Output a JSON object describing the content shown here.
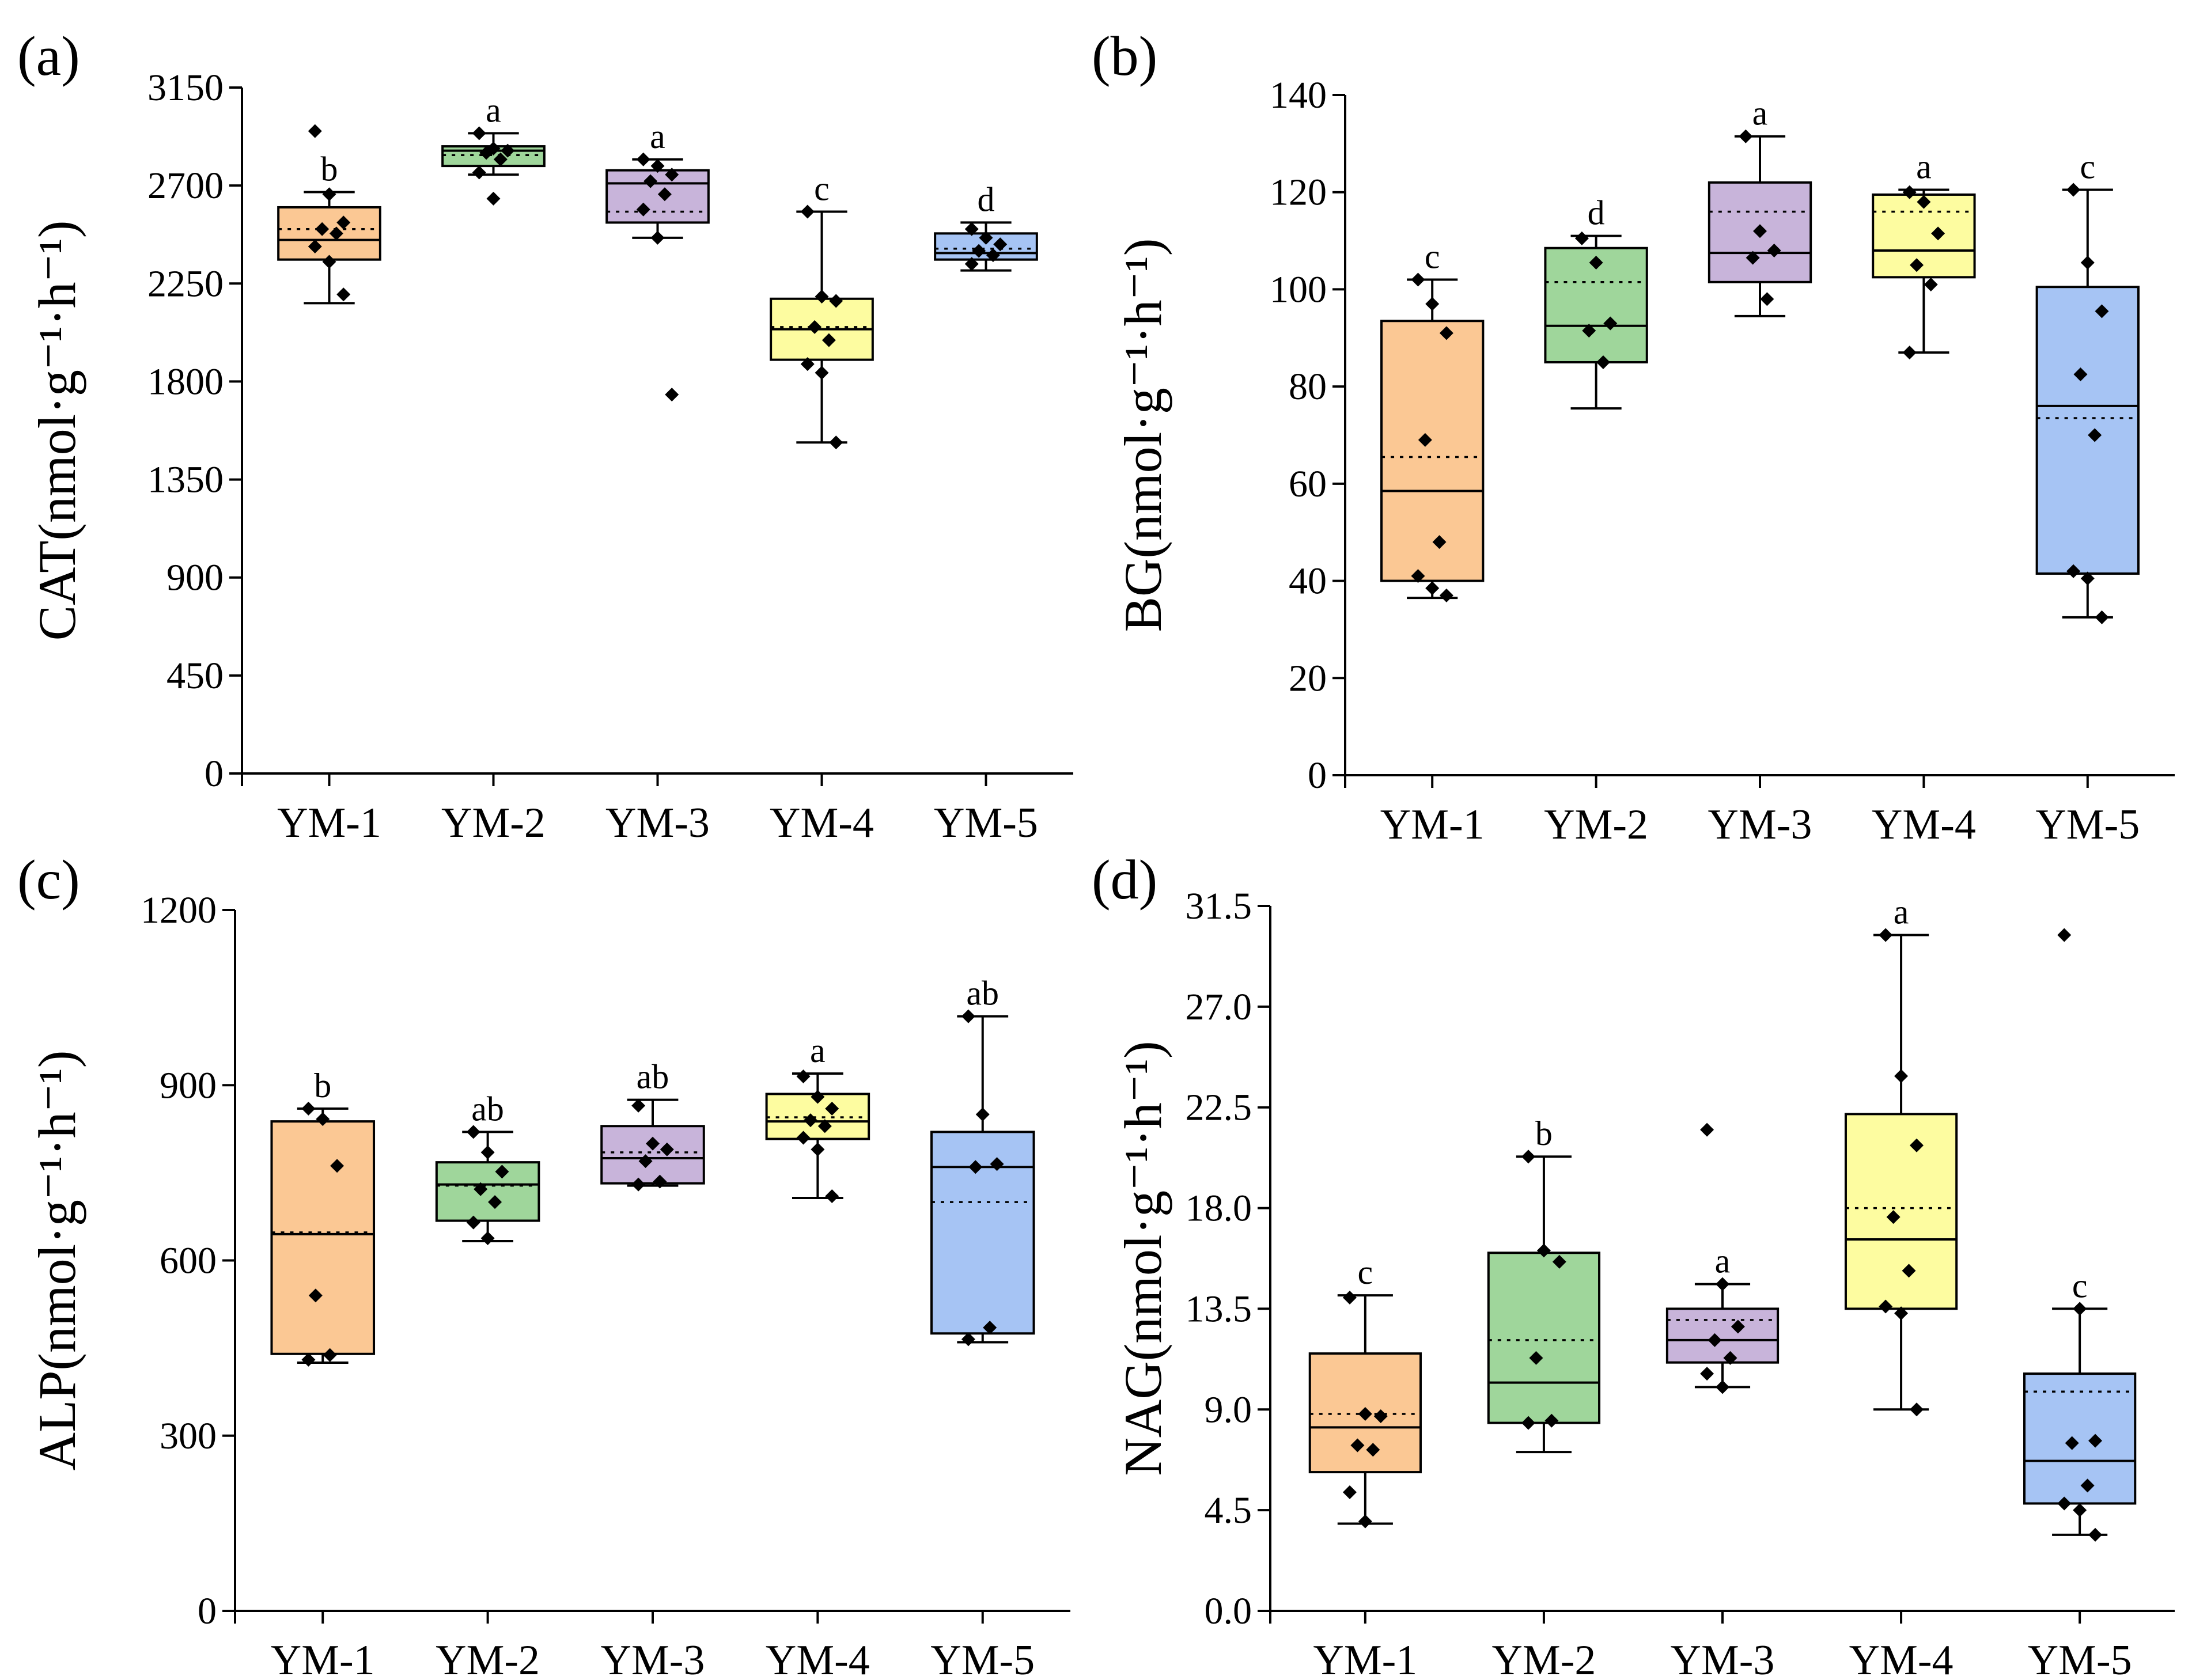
{
  "chart_data": [
    {
      "type": "box",
      "panel_label": "(a)",
      "ylabel": "CAT(nmol·g⁻¹·h⁻¹)",
      "ylim": [
        0,
        3150
      ],
      "yticks": [
        "0",
        "450",
        "900",
        "1350",
        "1800",
        "2250",
        "2700",
        "3150"
      ],
      "categories": [
        "YM-1",
        "YM-2",
        "YM-3",
        "YM-4",
        "YM-5"
      ],
      "colors": [
        "#fbc894",
        "#9fd69b",
        "#c8b4da",
        "#fdfca0",
        "#a6c4f4"
      ],
      "boxes": [
        {
          "min": 2160,
          "q1": 2360,
          "median": 2450,
          "q3": 2600,
          "max": 2670,
          "mean": 2500,
          "letter": "b",
          "points": [
            2950,
            2660,
            2530,
            2500,
            2480,
            2420,
            2350,
            2200
          ]
        },
        {
          "min": 2750,
          "q1": 2790,
          "median": 2860,
          "q3": 2880,
          "max": 2940,
          "mean": 2840,
          "letter": "a",
          "points": [
            2940,
            2870,
            2860,
            2850,
            2820,
            2760,
            2640
          ]
        },
        {
          "min": 2460,
          "q1": 2530,
          "median": 2710,
          "q3": 2770,
          "max": 2820,
          "mean": 2580,
          "letter": "a",
          "points": [
            2820,
            2790,
            2750,
            2720,
            2660,
            2590,
            2460,
            1740
          ]
        },
        {
          "min": 1520,
          "q1": 1900,
          "median": 2040,
          "q3": 2180,
          "max": 2580,
          "mean": 2050,
          "letter": "c",
          "points": [
            2580,
            2190,
            2170,
            2050,
            1990,
            1880,
            1840,
            1520
          ]
        },
        {
          "min": 2310,
          "q1": 2360,
          "median": 2390,
          "q3": 2480,
          "max": 2530,
          "mean": 2410,
          "letter": "d",
          "points": [
            2500,
            2460,
            2430,
            2400,
            2380,
            2340
          ]
        }
      ]
    },
    {
      "type": "box",
      "panel_label": "(b)",
      "ylabel": "BG(nmol·g⁻¹·h⁻¹)",
      "ylim": [
        0,
        140
      ],
      "yticks": [
        "0",
        "20",
        "40",
        "60",
        "80",
        "100",
        "120",
        "140"
      ],
      "categories": [
        "YM-1",
        "YM-2",
        "YM-3",
        "YM-4",
        "YM-5"
      ],
      "colors": [
        "#fbc894",
        "#9fd69b",
        "#c8b4da",
        "#fdfca0",
        "#a6c4f4"
      ],
      "boxes": [
        {
          "min": 36.5,
          "q1": 40,
          "median": 58.5,
          "q3": 93.5,
          "max": 102,
          "mean": 65.5,
          "letter": "c",
          "points": [
            102,
            97,
            91,
            69,
            48,
            41,
            38.5,
            37
          ]
        },
        {
          "min": 75.5,
          "q1": 85,
          "median": 92.5,
          "q3": 108.5,
          "max": 111,
          "mean": 101.5,
          "letter": "d",
          "points": [
            110.5,
            105.5,
            93,
            91.5,
            85
          ]
        },
        {
          "min": 94.5,
          "q1": 101.5,
          "median": 107.5,
          "q3": 122,
          "max": 131.5,
          "mean": 116,
          "letter": "a",
          "points": [
            131.5,
            112,
            108,
            106.5,
            98
          ]
        },
        {
          "min": 87,
          "q1": 102.5,
          "median": 108,
          "q3": 119.5,
          "max": 120.5,
          "mean": 116,
          "letter": "a",
          "points": [
            120,
            118,
            111.5,
            105,
            101,
            87
          ]
        },
        {
          "min": 32.5,
          "q1": 41.5,
          "median": 76,
          "q3": 100.5,
          "max": 120.5,
          "mean": 73.5,
          "letter": "c",
          "points": [
            120.5,
            105.5,
            95.5,
            82.5,
            70,
            42,
            40.5,
            32.5
          ]
        }
      ]
    },
    {
      "type": "box",
      "panel_label": "(c)",
      "ylabel": "ALP(nmol·g⁻¹·h⁻¹)",
      "ylim": [
        0,
        1200
      ],
      "yticks": [
        "0",
        "300",
        "600",
        "900",
        "1200"
      ],
      "categories": [
        "YM-1",
        "YM-2",
        "YM-3",
        "YM-4",
        "YM-5"
      ],
      "colors": [
        "#fbc894",
        "#9fd69b",
        "#c8b4da",
        "#fdfca0",
        "#a6c4f4"
      ],
      "boxes": [
        {
          "min": 425,
          "q1": 440,
          "median": 645,
          "q3": 838,
          "max": 860,
          "mean": 648,
          "letter": "b",
          "points": [
            860,
            842,
            762,
            540,
            438,
            430
          ]
        },
        {
          "min": 633,
          "q1": 668,
          "median": 730,
          "q3": 768,
          "max": 820,
          "mean": 728,
          "letter": "ab",
          "points": [
            820,
            785,
            752,
            722,
            700,
            665,
            638
          ]
        },
        {
          "min": 728,
          "q1": 732,
          "median": 775,
          "q3": 830,
          "max": 875,
          "mean": 785,
          "letter": "ab",
          "points": [
            865,
            800,
            790,
            770,
            735,
            730
          ]
        },
        {
          "min": 707,
          "q1": 808,
          "median": 838,
          "q3": 885,
          "max": 920,
          "mean": 845,
          "letter": "a",
          "points": [
            915,
            880,
            860,
            840,
            830,
            810,
            790,
            710
          ]
        },
        {
          "min": 460,
          "q1": 475,
          "median": 760,
          "q3": 820,
          "max": 1018,
          "mean": 700,
          "letter": "ab",
          "points": [
            1018,
            850,
            765,
            760,
            485,
            465
          ]
        }
      ]
    },
    {
      "type": "box",
      "panel_label": "(d)",
      "ylabel": "NAG(nmol·g⁻¹·h⁻¹)",
      "ylim": [
        0,
        31.5
      ],
      "yticks": [
        "0.0",
        "4.5",
        "9.0",
        "13.5",
        "18.0",
        "22.5",
        "27.0",
        "31.5"
      ],
      "categories": [
        "YM-1",
        "YM-2",
        "YM-3",
        "YM-4",
        "YM-5"
      ],
      "colors": [
        "#fbc894",
        "#9fd69b",
        "#c8b4da",
        "#fdfca0",
        "#a6c4f4"
      ],
      "boxes": [
        {
          "min": 3.9,
          "q1": 6.2,
          "median": 8.2,
          "q3": 11.5,
          "max": 14.1,
          "mean": 8.8,
          "letter": "c",
          "points": [
            14,
            8.8,
            8.7,
            7.4,
            7.2,
            5.3,
            4.0
          ]
        },
        {
          "min": 7.1,
          "q1": 8.4,
          "median": 10.2,
          "q3": 16.0,
          "max": 20.3,
          "mean": 12.1,
          "letter": "b",
          "points": [
            20.3,
            16.1,
            15.6,
            11.3,
            8.5,
            8.4
          ]
        },
        {
          "min": 10.0,
          "q1": 11.1,
          "median": 12.1,
          "q3": 13.5,
          "max": 14.6,
          "mean": 13.0,
          "letter": "a",
          "points": [
            21.5,
            14.6,
            12.7,
            12.1,
            11.3,
            10.6,
            10.0
          ]
        },
        {
          "min": 9.0,
          "q1": 13.5,
          "median": 16.6,
          "q3": 22.2,
          "max": 30.2,
          "mean": 18.0,
          "letter": "a",
          "points": [
            30.2,
            23.9,
            20.8,
            17.6,
            15.2,
            13.6,
            13.3,
            9.0
          ]
        },
        {
          "min": 3.4,
          "q1": 4.8,
          "median": 6.7,
          "q3": 10.6,
          "max": 13.5,
          "mean": 9.8,
          "letter": "c",
          "points": [
            30.2,
            13.5,
            7.6,
            7.5,
            5.6,
            4.8,
            4.5,
            3.4
          ]
        }
      ]
    }
  ]
}
